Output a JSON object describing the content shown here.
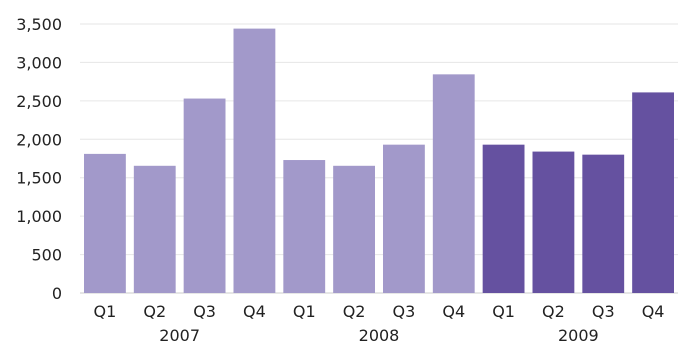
{
  "chart_data": {
    "type": "bar",
    "title": "",
    "xlabel": "",
    "ylabel": "",
    "ylim": [
      0,
      3500
    ],
    "y_ticks": [
      0,
      500,
      1000,
      1500,
      2000,
      2500,
      3000,
      3500
    ],
    "y_tick_labels": [
      "0",
      "500",
      "1,000",
      "1,500",
      "2,000",
      "2,500",
      "3,000",
      "3,500"
    ],
    "grid": true,
    "legend": "none",
    "categories": [
      "Q1",
      "Q2",
      "Q3",
      "Q4",
      "Q1",
      "Q2",
      "Q3",
      "Q4",
      "Q1",
      "Q2",
      "Q3",
      "Q4"
    ],
    "groups": [
      {
        "label": "2007",
        "start": 0,
        "end": 3
      },
      {
        "label": "2008",
        "start": 4,
        "end": 7
      },
      {
        "label": "2009",
        "start": 8,
        "end": 11
      }
    ],
    "values": [
      1810,
      1655,
      2530,
      3440,
      1730,
      1655,
      1930,
      2845,
      1930,
      1840,
      1800,
      2610
    ],
    "bar_colors": [
      "#a299ca",
      "#a299ca",
      "#a299ca",
      "#a299ca",
      "#a299ca",
      "#a299ca",
      "#a299ca",
      "#a299ca",
      "#6551a0",
      "#6551a0",
      "#6551a0",
      "#6551a0"
    ]
  }
}
